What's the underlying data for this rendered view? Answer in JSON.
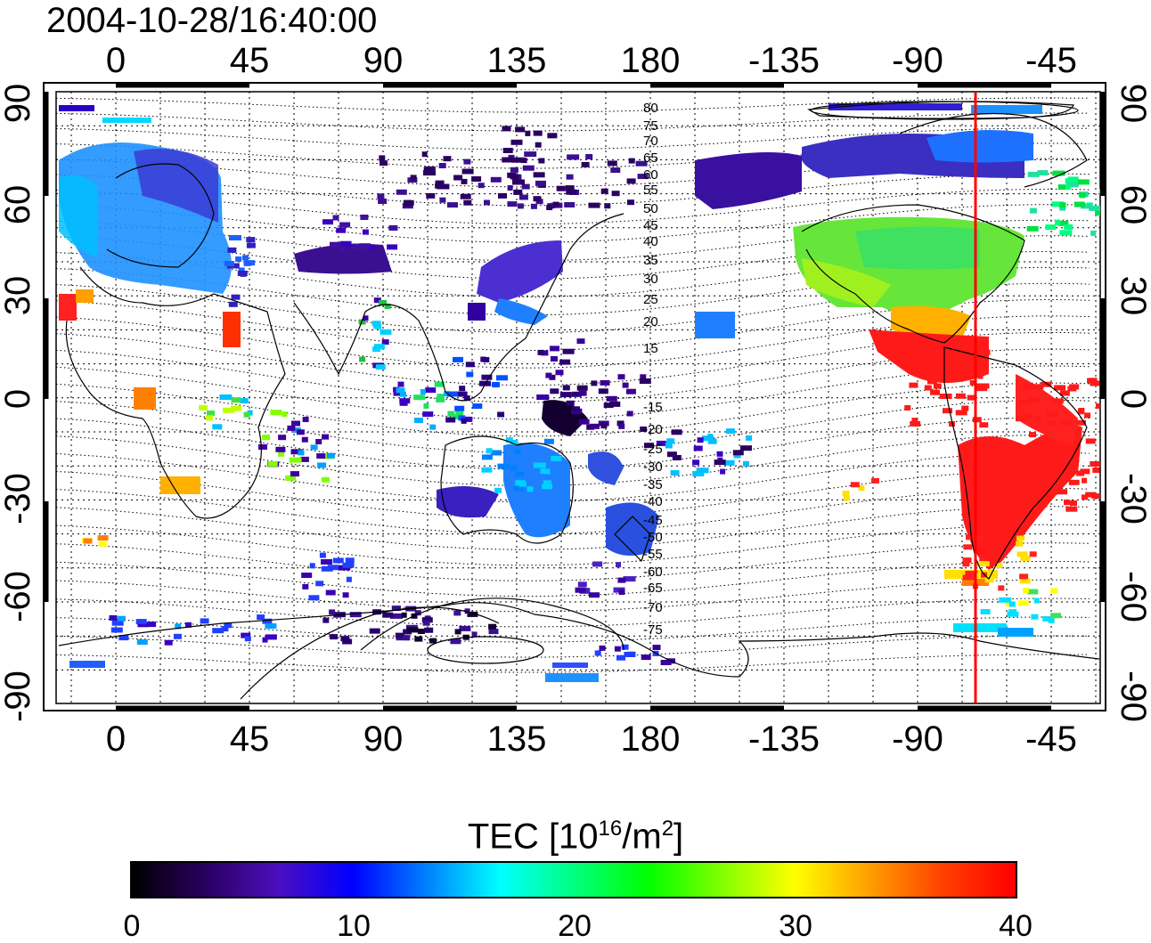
{
  "title": "2004-10-28/16:40:00",
  "map": {
    "lon_ticks_top": [
      "0",
      "45",
      "90",
      "135",
      "180",
      "-135",
      "-90",
      "-45"
    ],
    "lon_ticks_bottom": [
      "0",
      "45",
      "90",
      "135",
      "180",
      "-135",
      "-90",
      "-45"
    ],
    "lat_ticks_left": [
      "90",
      "60",
      "30",
      "0",
      "-30",
      "-60",
      "-90"
    ],
    "lat_ticks_right": [
      "90",
      "60",
      "30",
      "0",
      "-30",
      "-60",
      "-90"
    ],
    "contour_labels": [
      "80",
      "75",
      "70",
      "65",
      "60",
      "55",
      "50",
      "45",
      "40",
      "35",
      "30",
      "25",
      "20",
      "15",
      "-15",
      "-20",
      "-25",
      "-30",
      "-35",
      "-40",
      "-45",
      "-50",
      "-55",
      "-60",
      "-65",
      "-70",
      "-75"
    ],
    "marker_color": "#ff0000"
  },
  "colorbar": {
    "title_prefix": "TEC  [10",
    "title_sup1": "16",
    "title_mid": "/m",
    "title_sup2": "2",
    "title_suffix": "]",
    "ticks": [
      "0",
      "10",
      "20",
      "30",
      "40"
    ],
    "colors": [
      "#000000",
      "#2a0060",
      "#4b0ec0",
      "#0000ff",
      "#0080ff",
      "#00ffff",
      "#00ff80",
      "#00ff00",
      "#80ff00",
      "#ffff00",
      "#ffa000",
      "#ff4000",
      "#ff0000"
    ]
  }
}
